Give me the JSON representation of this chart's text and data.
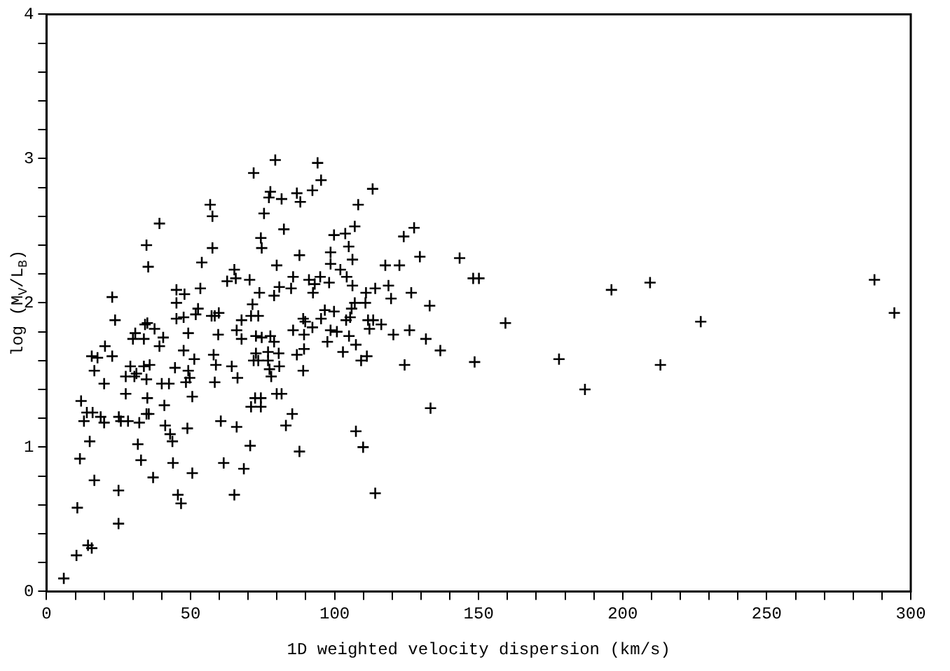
{
  "chart_data": {
    "type": "scatter",
    "xlabel": "1D weighted velocity dispersion (km/s)",
    "ylabel": "log (M$_{V}$/L$_{B}$)",
    "marker": "cross",
    "grid": false,
    "xlim": [
      0,
      300
    ],
    "ylim": [
      0,
      4
    ],
    "xticks": [
      0,
      {
        "value": 10,
        "label": null
      },
      {
        "value": 20,
        "label": null
      },
      {
        "value": 30,
        "label": null
      },
      {
        "value": 40,
        "label": null
      },
      50,
      {
        "value": 60,
        "label": null
      },
      {
        "value": 70,
        "label": null
      },
      {
        "value": 80,
        "label": null
      },
      {
        "value": 90,
        "label": null
      },
      100,
      {
        "value": 110,
        "label": null
      },
      {
        "value": 120,
        "label": null
      },
      {
        "value": 130,
        "label": null
      },
      {
        "value": 140,
        "label": null
      },
      150,
      {
        "value": 160,
        "label": null
      },
      {
        "value": 170,
        "label": null
      },
      {
        "value": 180,
        "label": null
      },
      {
        "value": 190,
        "label": null
      },
      200,
      {
        "value": 210,
        "label": null
      },
      {
        "value": 220,
        "label": null
      },
      {
        "value": 230,
        "label": null
      },
      {
        "value": 240,
        "label": null
      },
      250,
      {
        "value": 260,
        "label": null
      },
      {
        "value": 270,
        "label": null
      },
      {
        "value": 280,
        "label": null
      },
      {
        "value": 290,
        "label": null
      },
      300
    ],
    "yticks": [
      0,
      {
        "value": 0.2,
        "label": null
      },
      {
        "value": 0.4,
        "label": null
      },
      {
        "value": 0.6,
        "label": null
      },
      {
        "value": 0.8,
        "label": null
      },
      1,
      {
        "value": 1.2,
        "label": null
      },
      {
        "value": 1.4,
        "label": null
      },
      {
        "value": 1.6,
        "label": null
      },
      {
        "value": 1.8,
        "label": null
      },
      2,
      {
        "value": 2.2,
        "label": null
      },
      {
        "value": 2.4,
        "label": null
      },
      {
        "value": 2.6,
        "label": null
      },
      {
        "value": 2.8,
        "label": null
      },
      3,
      {
        "value": 3.2,
        "label": null
      },
      {
        "value": 3.4,
        "label": null
      },
      {
        "value": 3.6,
        "label": null
      },
      {
        "value": 3.8,
        "label": null
      },
      4
    ],
    "series": [
      {
        "color": "#000000",
        "x": [
          6,
          10.4,
          10.7,
          11.6,
          12,
          13,
          14,
          15,
          14.4,
          15.7,
          16.6,
          16,
          15.7,
          17.7,
          16.6,
          18.8,
          20,
          20,
          20.3,
          22.8,
          22.8,
          23.8,
          25,
          25,
          25.1,
          25.8,
          28.3,
          27.5,
          27.5,
          29.1,
          30,
          30.8,
          30.5,
          31.2,
          32.2,
          31.7,
          32.8,
          33.8,
          34.2,
          35,
          33.8,
          34.7,
          35.3,
          34.7,
          35,
          34.7,
          35.5,
          35.8,
          37,
          37.5,
          39.2,
          39.2,
          40,
          40.5,
          40.9,
          41.2,
          42.5,
          42.9,
          43.7,
          43.9,
          44.6,
          45.1,
          45.1,
          45.1,
          45.6,
          46.7,
          47.6,
          47.9,
          47.6,
          48.4,
          49.2,
          49.2,
          48.9,
          49.7,
          50.6,
          50.6,
          51.3,
          51.8,
          52.6,
          53.4,
          53.9,
          57.3,
          56.8,
          57.6,
          57.6,
          58.4,
          59.8,
          58,
          58.8,
          58.4,
          59.6,
          60.5,
          61.5,
          62.7,
          64.3,
          65.2,
          65.7,
          66,
          66,
          65.2,
          66.3,
          67.7,
          67.7,
          68.5,
          79.4,
          94.1,
          71.9,
          95.3,
          77.7,
          77.2,
          81.6,
          86.9,
          88.1,
          92.3,
          113.2,
          108.2,
          75.5,
          82.4,
          74.4,
          74.7,
          87.8,
          99.8,
          103.7,
          107,
          104.9,
          98.6,
          106.2,
          98.6,
          102,
          104.2,
          124,
          127.6,
          129.6,
          117.6,
          122.5,
          79.9,
          85.6,
          84.9,
          80.8,
          79,
          73.9,
          70.5,
          91.1,
          93.1,
          95,
          92.5,
          98.1,
          106.2,
          110.9,
          114.1,
          118.7,
          119.6,
          126.6,
          133,
          71.5,
          71,
          73.5,
          72.7,
          74.7,
          77.7,
          79,
          85.6,
          89.1,
          89.8,
          89.4,
          92.3,
          95.3,
          96.6,
          99.8,
          98.6,
          100.8,
          97.5,
          104,
          105.4,
          105.9,
          107,
          110.7,
          105,
          107.4,
          102.9,
          111.6,
          113.4,
          112.1,
          116.2,
          120.4,
          126,
          131.7,
          136.7,
          111.2,
          109.2,
          124.3,
          133.3,
          107.4,
          109.9,
          114.1,
          86.9,
          89.4,
          89.1,
          72.7,
          71.9,
          73.5,
          76.9,
          76.9,
          77.4,
          78,
          80.6,
          80.8,
          79.9,
          81.6,
          72.4,
          74.4,
          71,
          74.4,
          85.3,
          83.1,
          70.7,
          87.8,
          143.4,
          148.1,
          150.1,
          159.3,
          148.6,
          177.9,
          186.9,
          196.1,
          209.5,
          213.1,
          227.1,
          287.4,
          294.3
        ],
        "values": [
          0.09,
          0.25,
          0.58,
          0.92,
          1.32,
          1.18,
          1.24,
          1.04,
          0.32,
          0.3,
          0.77,
          1.24,
          1.63,
          1.62,
          1.53,
          1.21,
          1.17,
          1.44,
          1.7,
          1.63,
          2.04,
          1.88,
          0.7,
          0.47,
          1.21,
          1.18,
          1.18,
          1.37,
          1.49,
          1.56,
          1.75,
          1.79,
          1.49,
          1.51,
          1.17,
          1.02,
          0.91,
          1.56,
          1.85,
          1.86,
          1.75,
          2.4,
          2.25,
          1.47,
          1.34,
          1.23,
          1.23,
          1.57,
          0.79,
          1.82,
          2.55,
          1.7,
          1.44,
          1.76,
          1.29,
          1.15,
          1.44,
          1.09,
          1.04,
          0.89,
          1.55,
          2.09,
          2,
          1.89,
          0.67,
          0.61,
          1.9,
          2.06,
          1.67,
          1.45,
          1.53,
          1.79,
          1.13,
          1.48,
          1.35,
          0.82,
          1.61,
          1.92,
          1.96,
          2.1,
          2.28,
          1.91,
          2.68,
          2.6,
          2.38,
          1.91,
          1.93,
          1.64,
          1.57,
          1.45,
          1.78,
          1.18,
          0.89,
          2.15,
          1.56,
          2.23,
          2.17,
          1.81,
          1.14,
          0.67,
          1.48,
          1.88,
          1.75,
          0.85,
          2.99,
          2.97,
          2.9,
          2.85,
          2.77,
          2.73,
          2.72,
          2.76,
          2.7,
          2.78,
          2.79,
          2.68,
          2.62,
          2.51,
          2.45,
          2.38,
          2.33,
          2.47,
          2.48,
          2.53,
          2.39,
          2.35,
          2.3,
          2.27,
          2.23,
          2.18,
          2.46,
          2.52,
          2.32,
          2.26,
          2.26,
          2.26,
          2.18,
          2.1,
          2.11,
          2.05,
          2.07,
          2.16,
          2.16,
          2.13,
          2.18,
          2.07,
          2.14,
          2.12,
          2.07,
          2.1,
          2.12,
          2.03,
          2.07,
          1.98,
          1.99,
          1.91,
          1.91,
          1.77,
          1.76,
          1.77,
          1.73,
          1.81,
          1.89,
          1.87,
          1.78,
          1.83,
          1.89,
          1.95,
          1.94,
          1.81,
          1.8,
          1.73,
          1.88,
          1.9,
          1.96,
          2,
          2,
          1.77,
          1.71,
          1.66,
          1.88,
          1.88,
          1.82,
          1.85,
          1.78,
          1.81,
          1.75,
          1.67,
          1.63,
          1.6,
          1.57,
          1.27,
          1.11,
          1,
          0.68,
          1.64,
          1.68,
          1.53,
          1.65,
          1.6,
          1.6,
          1.66,
          1.6,
          1.54,
          1.49,
          1.65,
          1.56,
          1.37,
          1.37,
          1.34,
          1.34,
          1.28,
          1.28,
          1.23,
          1.15,
          1.01,
          0.97,
          2.31,
          2.17,
          2.17,
          1.86,
          1.59,
          1.61,
          1.4,
          2.09,
          2.14,
          1.57,
          1.87,
          2.16,
          1.93
        ]
      }
    ]
  }
}
